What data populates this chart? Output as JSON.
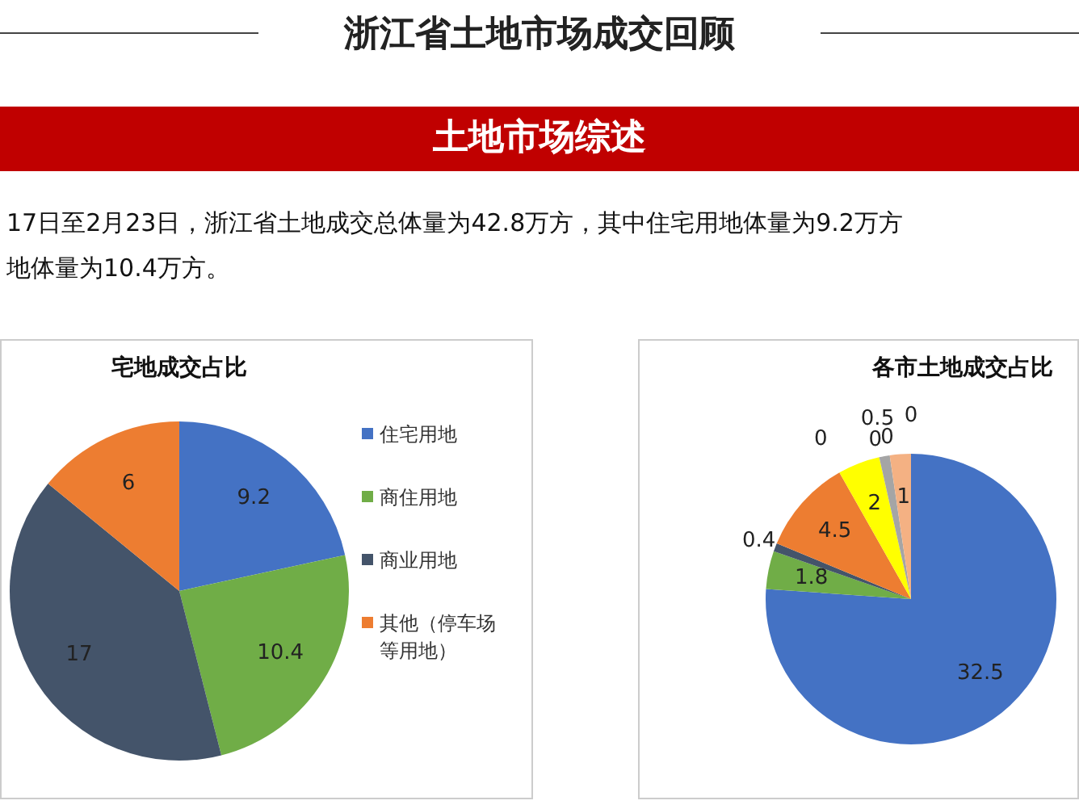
{
  "chart_data": [
    {
      "type": "other",
      "title": "浙江省土地市场成交回顾",
      "subtitle": "土地市场综述",
      "annotations": [
        "17日至2月23日，浙江省土地成交总体量为42.8万方，其中住宅用地体量为9.2万方",
        "地体量为10.4万方。"
      ]
    },
    {
      "type": "pie",
      "title": "宅地成交占比",
      "categories": [
        "住宅用地",
        "商住用地",
        "商业用地",
        "其他（停车场等用地）"
      ],
      "values": [
        9.2,
        10.4,
        17,
        6
      ],
      "colors": [
        "#4472c4",
        "#70ad47",
        "#44546a",
        "#ed7d31"
      ],
      "data_labels": true,
      "legend": "right"
    },
    {
      "type": "pie",
      "title": "各市土地成交占比",
      "categories": [
        null,
        null,
        null,
        null,
        null,
        null,
        null,
        null,
        null,
        null,
        null
      ],
      "values": [
        32.5,
        1.8,
        0.4,
        4.5,
        0,
        2,
        0,
        0.5,
        0,
        1,
        0
      ],
      "colors": [
        "#4472c4",
        "#70ad47",
        "#44546a",
        "#ed7d31",
        "#5b9bd5",
        "#ffff00",
        "#264478",
        "#a5a5a5",
        "#9e480e",
        "#f4b183",
        "#636363"
      ],
      "value_labels": [
        "32.5",
        "1.8",
        "0.4",
        "4.5",
        "0",
        "2",
        "0",
        "0.5",
        "0",
        "1",
        "0"
      ]
    }
  ]
}
